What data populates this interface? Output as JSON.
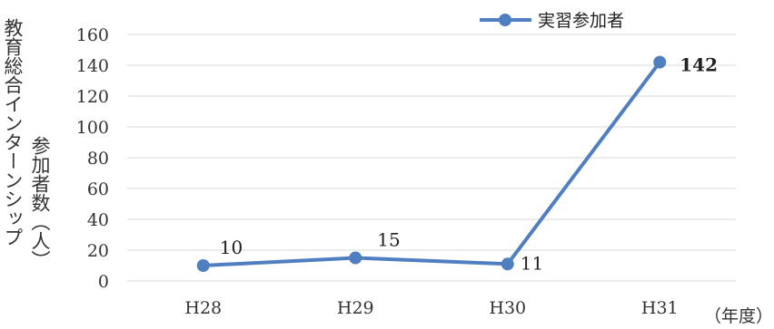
{
  "chart_data": {
    "type": "line",
    "categories": [
      "H28",
      "H29",
      "H30",
      "H31"
    ],
    "series": [
      {
        "name": "実習参加者",
        "values": [
          10,
          15,
          11,
          142
        ],
        "color": "#4f7fc0"
      }
    ],
    "data_labels": [
      "10",
      "15",
      "11",
      "142"
    ],
    "ylabel_lines": [
      "教育総合インターンシップ",
      "参加者数（人）"
    ],
    "x_unit": "（年度）",
    "ylim": [
      0,
      160
    ],
    "yticks": [
      0,
      20,
      40,
      60,
      80,
      100,
      120,
      140,
      160
    ],
    "grid": true,
    "legend_position": "top-right"
  }
}
